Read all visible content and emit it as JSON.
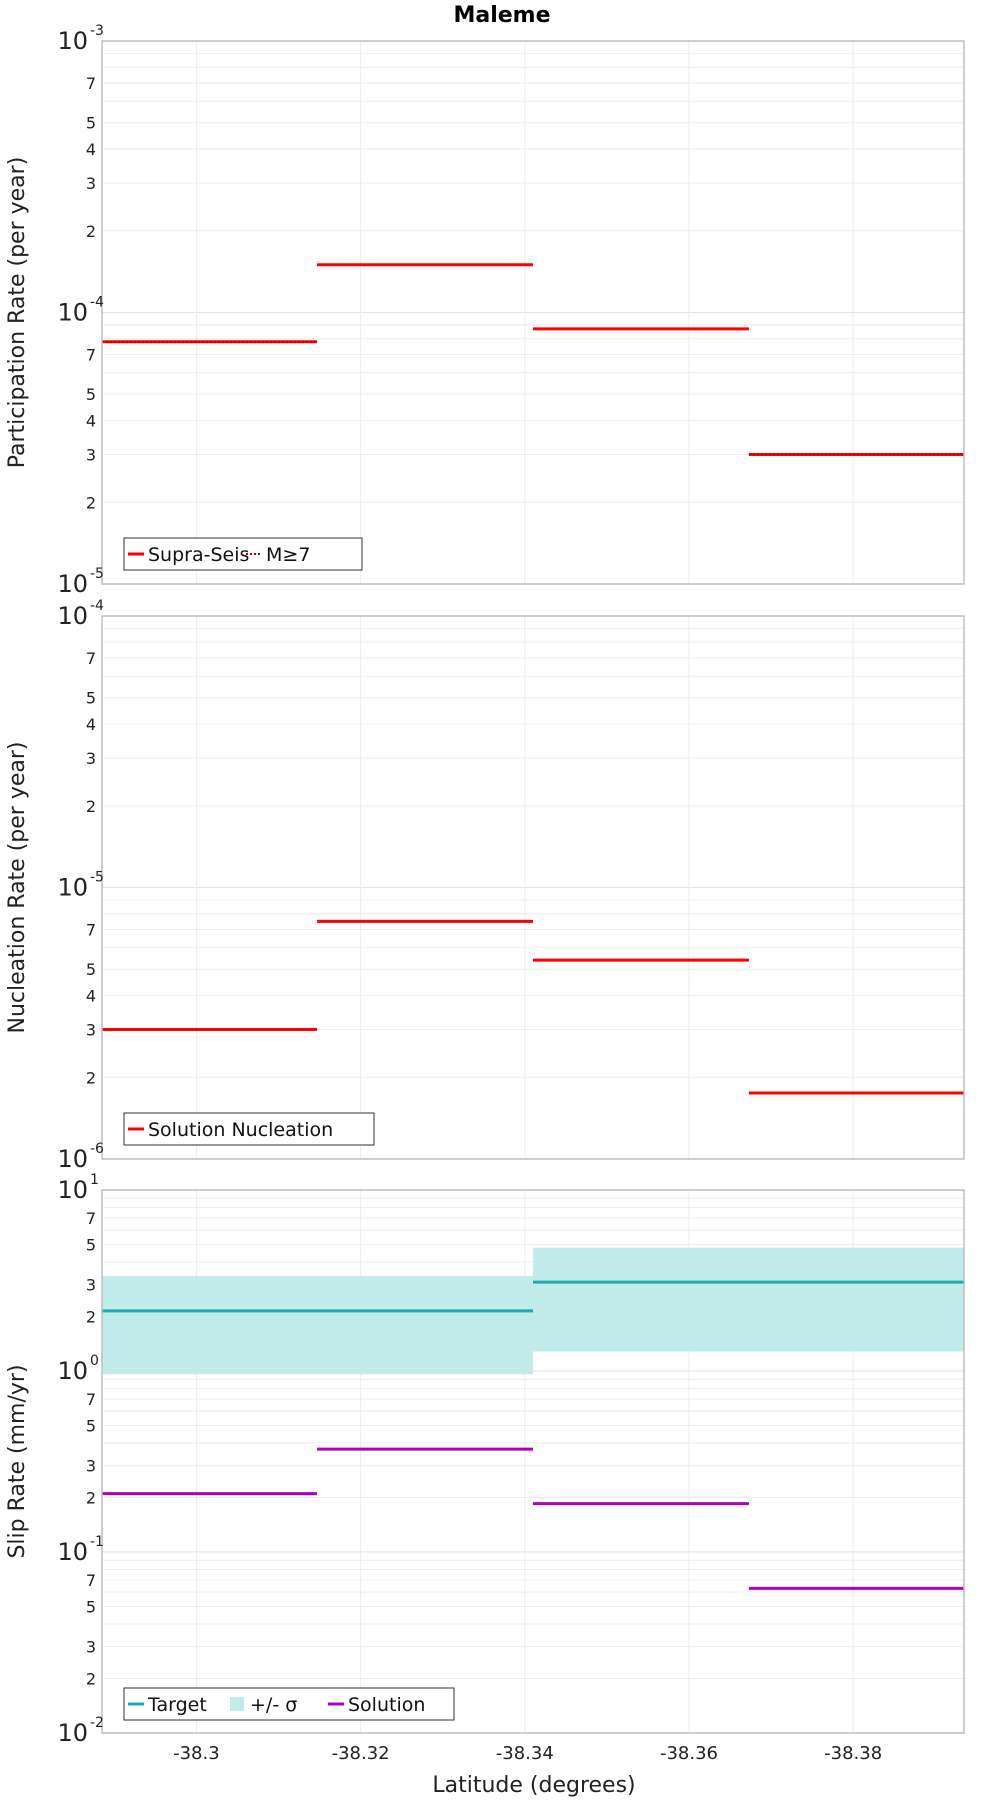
{
  "title": "Maleme",
  "xlabel": "Latitude (degrees)",
  "x_ticks": [
    -38.3,
    -38.32,
    -38.34,
    -38.36,
    -38.38
  ],
  "x_tick_labels": [
    "-38.3",
    "-38.32",
    "-38.34",
    "-38.36",
    "-38.38"
  ],
  "colors": {
    "red": "#ff0000",
    "teal": "#1aacac",
    "band": "#c2ecea",
    "purple": "#b000b8"
  },
  "chart_data": [
    {
      "type": "line",
      "ylabel": "Participation Rate (per year)",
      "y_scale": "log",
      "ylim": [
        1e-05,
        0.001
      ],
      "xlim": [
        -38.2885,
        -38.3935
      ],
      "decade_labels": [
        {
          "base": "10",
          "exp": "-3",
          "value": 0.001
        },
        {
          "base": "10",
          "exp": "-4",
          "value": 0.0001
        },
        {
          "base": "10",
          "exp": "-5",
          "value": 1e-05
        }
      ],
      "minor_labels": [
        "7",
        "5",
        "4",
        "3",
        "2",
        "7",
        "5",
        "4",
        "3",
        "2"
      ],
      "series": [
        {
          "name": "Supra-Seis",
          "style": "solid",
          "color": "#ff0000",
          "segments": [
            {
              "x0": -38.2885,
              "x1": -38.3147,
              "y": 7.8e-05
            },
            {
              "x0": -38.3147,
              "x1": -38.341,
              "y": 0.00015
            },
            {
              "x0": -38.341,
              "x1": -38.3673,
              "y": 8.7e-05
            },
            {
              "x0": -38.3673,
              "x1": -38.3935,
              "y": 3e-05
            }
          ]
        },
        {
          "name": "M≥7",
          "style": "dotted",
          "color": "#ff0000",
          "segments": [
            {
              "x0": -38.2885,
              "x1": -38.3147,
              "y": 7.8e-05
            },
            {
              "x0": -38.3673,
              "x1": -38.3935,
              "y": 3e-05
            }
          ]
        }
      ]
    },
    {
      "type": "line",
      "ylabel": "Nucleation Rate (per year)",
      "y_scale": "log",
      "ylim": [
        1e-06,
        0.0001
      ],
      "xlim": [
        -38.2885,
        -38.3935
      ],
      "decade_labels": [
        {
          "base": "10",
          "exp": "-4",
          "value": 0.0001
        },
        {
          "base": "10",
          "exp": "-5",
          "value": 1e-05
        },
        {
          "base": "10",
          "exp": "-6",
          "value": 1e-06
        }
      ],
      "minor_labels": [
        "7",
        "5",
        "4",
        "3",
        "2",
        "7",
        "5",
        "4",
        "3",
        "2"
      ],
      "series": [
        {
          "name": "Solution Nucleation",
          "style": "solid",
          "color": "#ff0000",
          "segments": [
            {
              "x0": -38.2885,
              "x1": -38.3147,
              "y": 3e-06
            },
            {
              "x0": -38.3147,
              "x1": -38.341,
              "y": 7.5e-06
            },
            {
              "x0": -38.341,
              "x1": -38.3673,
              "y": 5.4e-06
            },
            {
              "x0": -38.3673,
              "x1": -38.3935,
              "y": 1.75e-06
            }
          ]
        }
      ]
    },
    {
      "type": "line",
      "ylabel": "Slip Rate (mm/yr)",
      "y_scale": "log",
      "ylim": [
        0.01,
        10
      ],
      "xlim": [
        -38.2885,
        -38.3935
      ],
      "decade_labels": [
        {
          "base": "10",
          "exp": "1",
          "value": 10
        },
        {
          "base": "10",
          "exp": "0",
          "value": 1
        },
        {
          "base": "10",
          "exp": "-1",
          "value": 0.1
        },
        {
          "base": "10",
          "exp": "-2",
          "value": 0.01
        }
      ],
      "minor_labels": [
        "7",
        "5",
        "3",
        "2",
        "7",
        "5",
        "3",
        "2",
        "7",
        "5",
        "3",
        "2"
      ],
      "bands": [
        {
          "name": "+/- σ",
          "color": "#c2ecea",
          "segments": [
            {
              "x0": -38.2885,
              "x1": -38.341,
              "y0": 0.96,
              "y1": 3.35
            },
            {
              "x0": -38.341,
              "x1": -38.3935,
              "y0": 1.28,
              "y1": 4.8
            }
          ]
        }
      ],
      "series": [
        {
          "name": "Target",
          "style": "solid",
          "color": "#1aacac",
          "segments": [
            {
              "x0": -38.2885,
              "x1": -38.341,
              "y": 2.15
            },
            {
              "x0": -38.341,
              "x1": -38.3935,
              "y": 3.1
            }
          ]
        },
        {
          "name": "Solution",
          "style": "solid",
          "color": "#b000b8",
          "segments": [
            {
              "x0": -38.2885,
              "x1": -38.3147,
              "y": 0.21
            },
            {
              "x0": -38.3147,
              "x1": -38.341,
              "y": 0.37
            },
            {
              "x0": -38.341,
              "x1": -38.3673,
              "y": 0.185
            },
            {
              "x0": -38.3673,
              "x1": -38.3935,
              "y": 0.063
            }
          ]
        }
      ]
    }
  ]
}
